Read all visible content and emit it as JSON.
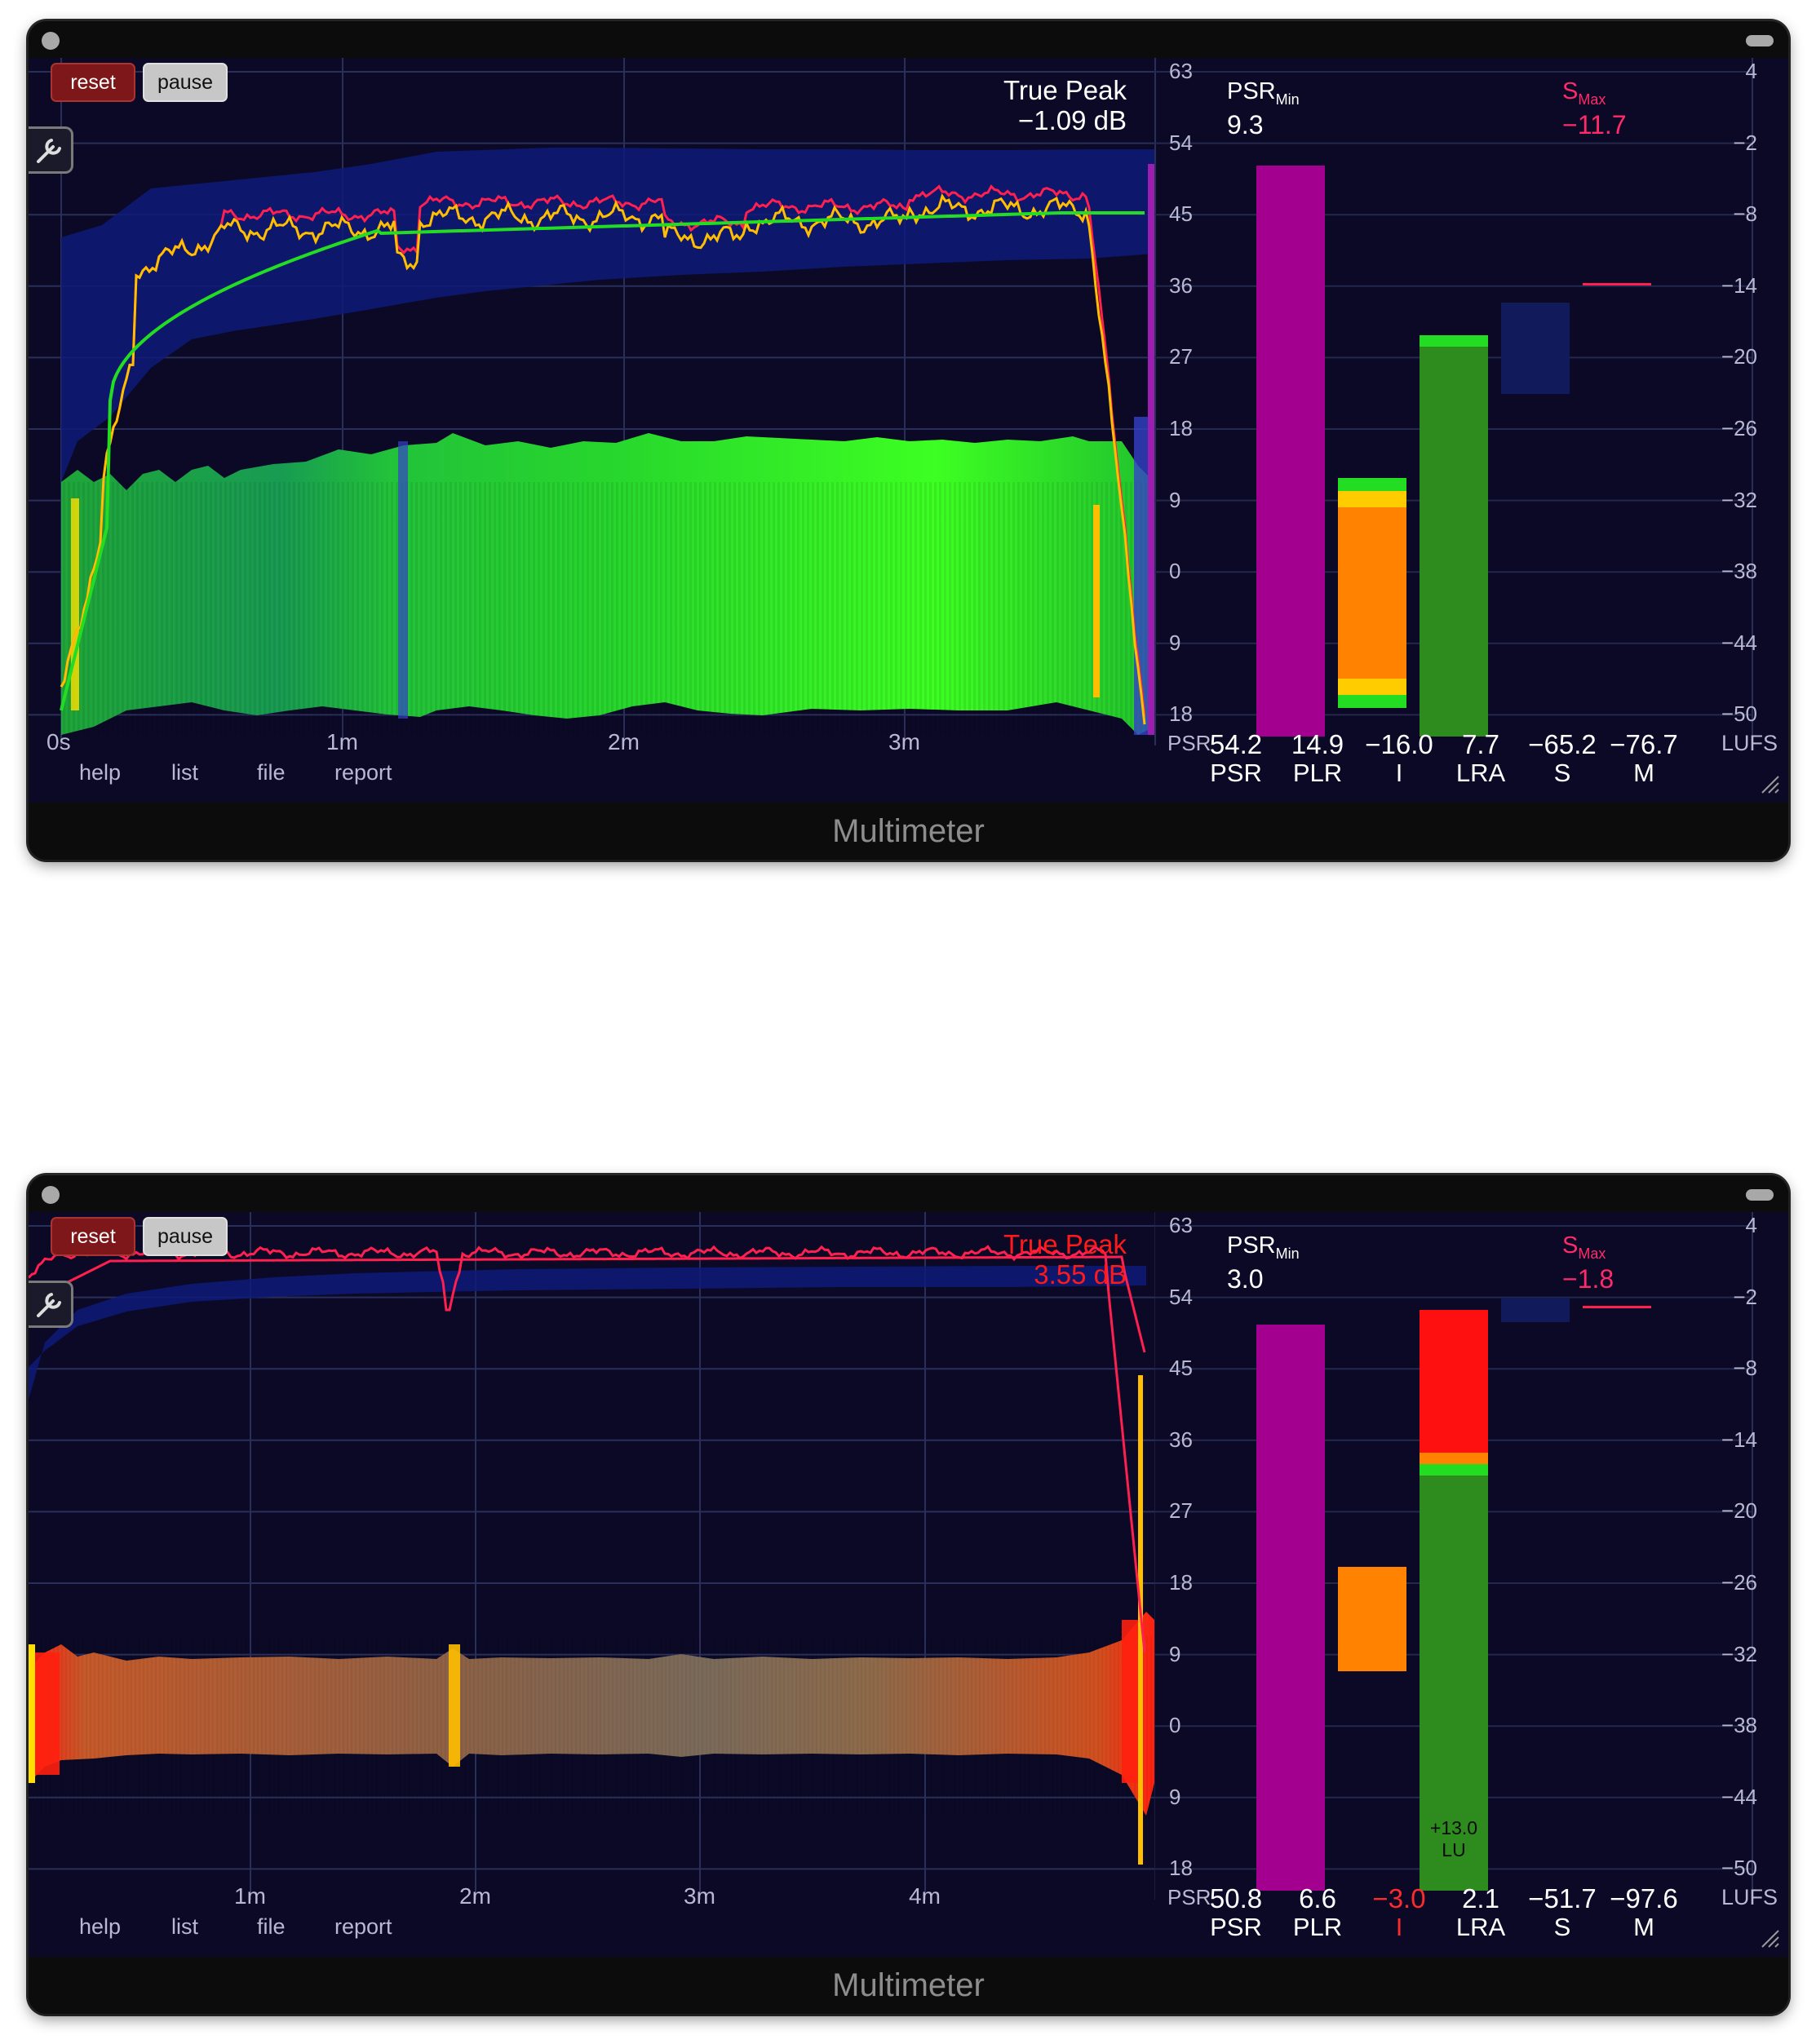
{
  "windows": [
    {
      "title": "Multimeter",
      "buttons": {
        "reset": "reset",
        "pause": "pause"
      },
      "true_peak": {
        "label": "True Peak",
        "value": "−1.09 dB",
        "color": "#ffffff"
      },
      "psr_min": {
        "label": "PSR",
        "sub": "Min",
        "value": "9.3"
      },
      "s_max": {
        "label": "S",
        "sub": "Max",
        "value": "−11.7",
        "color": "#ff2a6a"
      },
      "psr_axis": [
        "63",
        "54",
        "45",
        "36",
        "27",
        "18",
        "9",
        "0",
        "9",
        "18"
      ],
      "psr_axis_label": "PSR",
      "lufs_axis": [
        "4",
        "−2",
        "−8",
        "−14",
        "−20",
        "−26",
        "−32",
        "−38",
        "−44",
        "−50"
      ],
      "lufs_axis_label": "LUFS",
      "time_labels": [
        "0s",
        "1m",
        "2m",
        "3m"
      ],
      "menu": [
        "help",
        "list",
        "file",
        "report"
      ],
      "readouts": [
        {
          "value": "54.2",
          "label": "PSR",
          "color": "#ffffff"
        },
        {
          "value": "14.9",
          "label": "PLR",
          "color": "#ffffff"
        },
        {
          "value": "−16.0",
          "label": "I",
          "color": "#ffffff"
        },
        {
          "value": "7.7",
          "label": "LRA",
          "color": "#ffffff"
        },
        {
          "value": "−65.2",
          "label": "S",
          "color": "#ffffff"
        },
        {
          "value": "−76.7",
          "label": "M",
          "color": "#ffffff"
        }
      ],
      "lu_label": ""
    },
    {
      "title": "Multimeter",
      "buttons": {
        "reset": "reset",
        "pause": "pause"
      },
      "true_peak": {
        "label": "True Peak",
        "value": "3.55 dB",
        "color": "#ff1a1a"
      },
      "psr_min": {
        "label": "PSR",
        "sub": "Min",
        "value": "3.0"
      },
      "s_max": {
        "label": "S",
        "sub": "Max",
        "value": "−1.8",
        "color": "#ff2a6a"
      },
      "psr_axis": [
        "63",
        "54",
        "45",
        "36",
        "27",
        "18",
        "9",
        "0",
        "9",
        "18"
      ],
      "psr_axis_label": "PSR",
      "lufs_axis": [
        "4",
        "−2",
        "−8",
        "−14",
        "−20",
        "−26",
        "−32",
        "−38",
        "−44",
        "−50"
      ],
      "lufs_axis_label": "LUFS",
      "time_labels": [
        "1m",
        "2m",
        "3m",
        "4m"
      ],
      "menu": [
        "help",
        "list",
        "file",
        "report"
      ],
      "readouts": [
        {
          "value": "50.8",
          "label": "PSR",
          "color": "#ffffff"
        },
        {
          "value": "6.6",
          "label": "PLR",
          "color": "#ffffff"
        },
        {
          "value": "−3.0",
          "label": "I",
          "color": "#ff2a2a"
        },
        {
          "value": "2.1",
          "label": "LRA",
          "color": "#ffffff"
        },
        {
          "value": "−51.7",
          "label": "S",
          "color": "#ffffff"
        },
        {
          "value": "−97.6",
          "label": "M",
          "color": "#ffffff"
        }
      ],
      "lu_label": "+13.0\nLU"
    }
  ],
  "colors": {
    "background": "#0b0926",
    "psr_bar": "#a3008f",
    "plr_bar": "#ff8200",
    "integrated_green": "#2e8b1e",
    "loud_red": "#ff1010",
    "lra_box": "#111a5a",
    "true_peak_line": "#ff2050",
    "short_term_line": "#ffbf00",
    "integrated_line": "#22dd22"
  }
}
